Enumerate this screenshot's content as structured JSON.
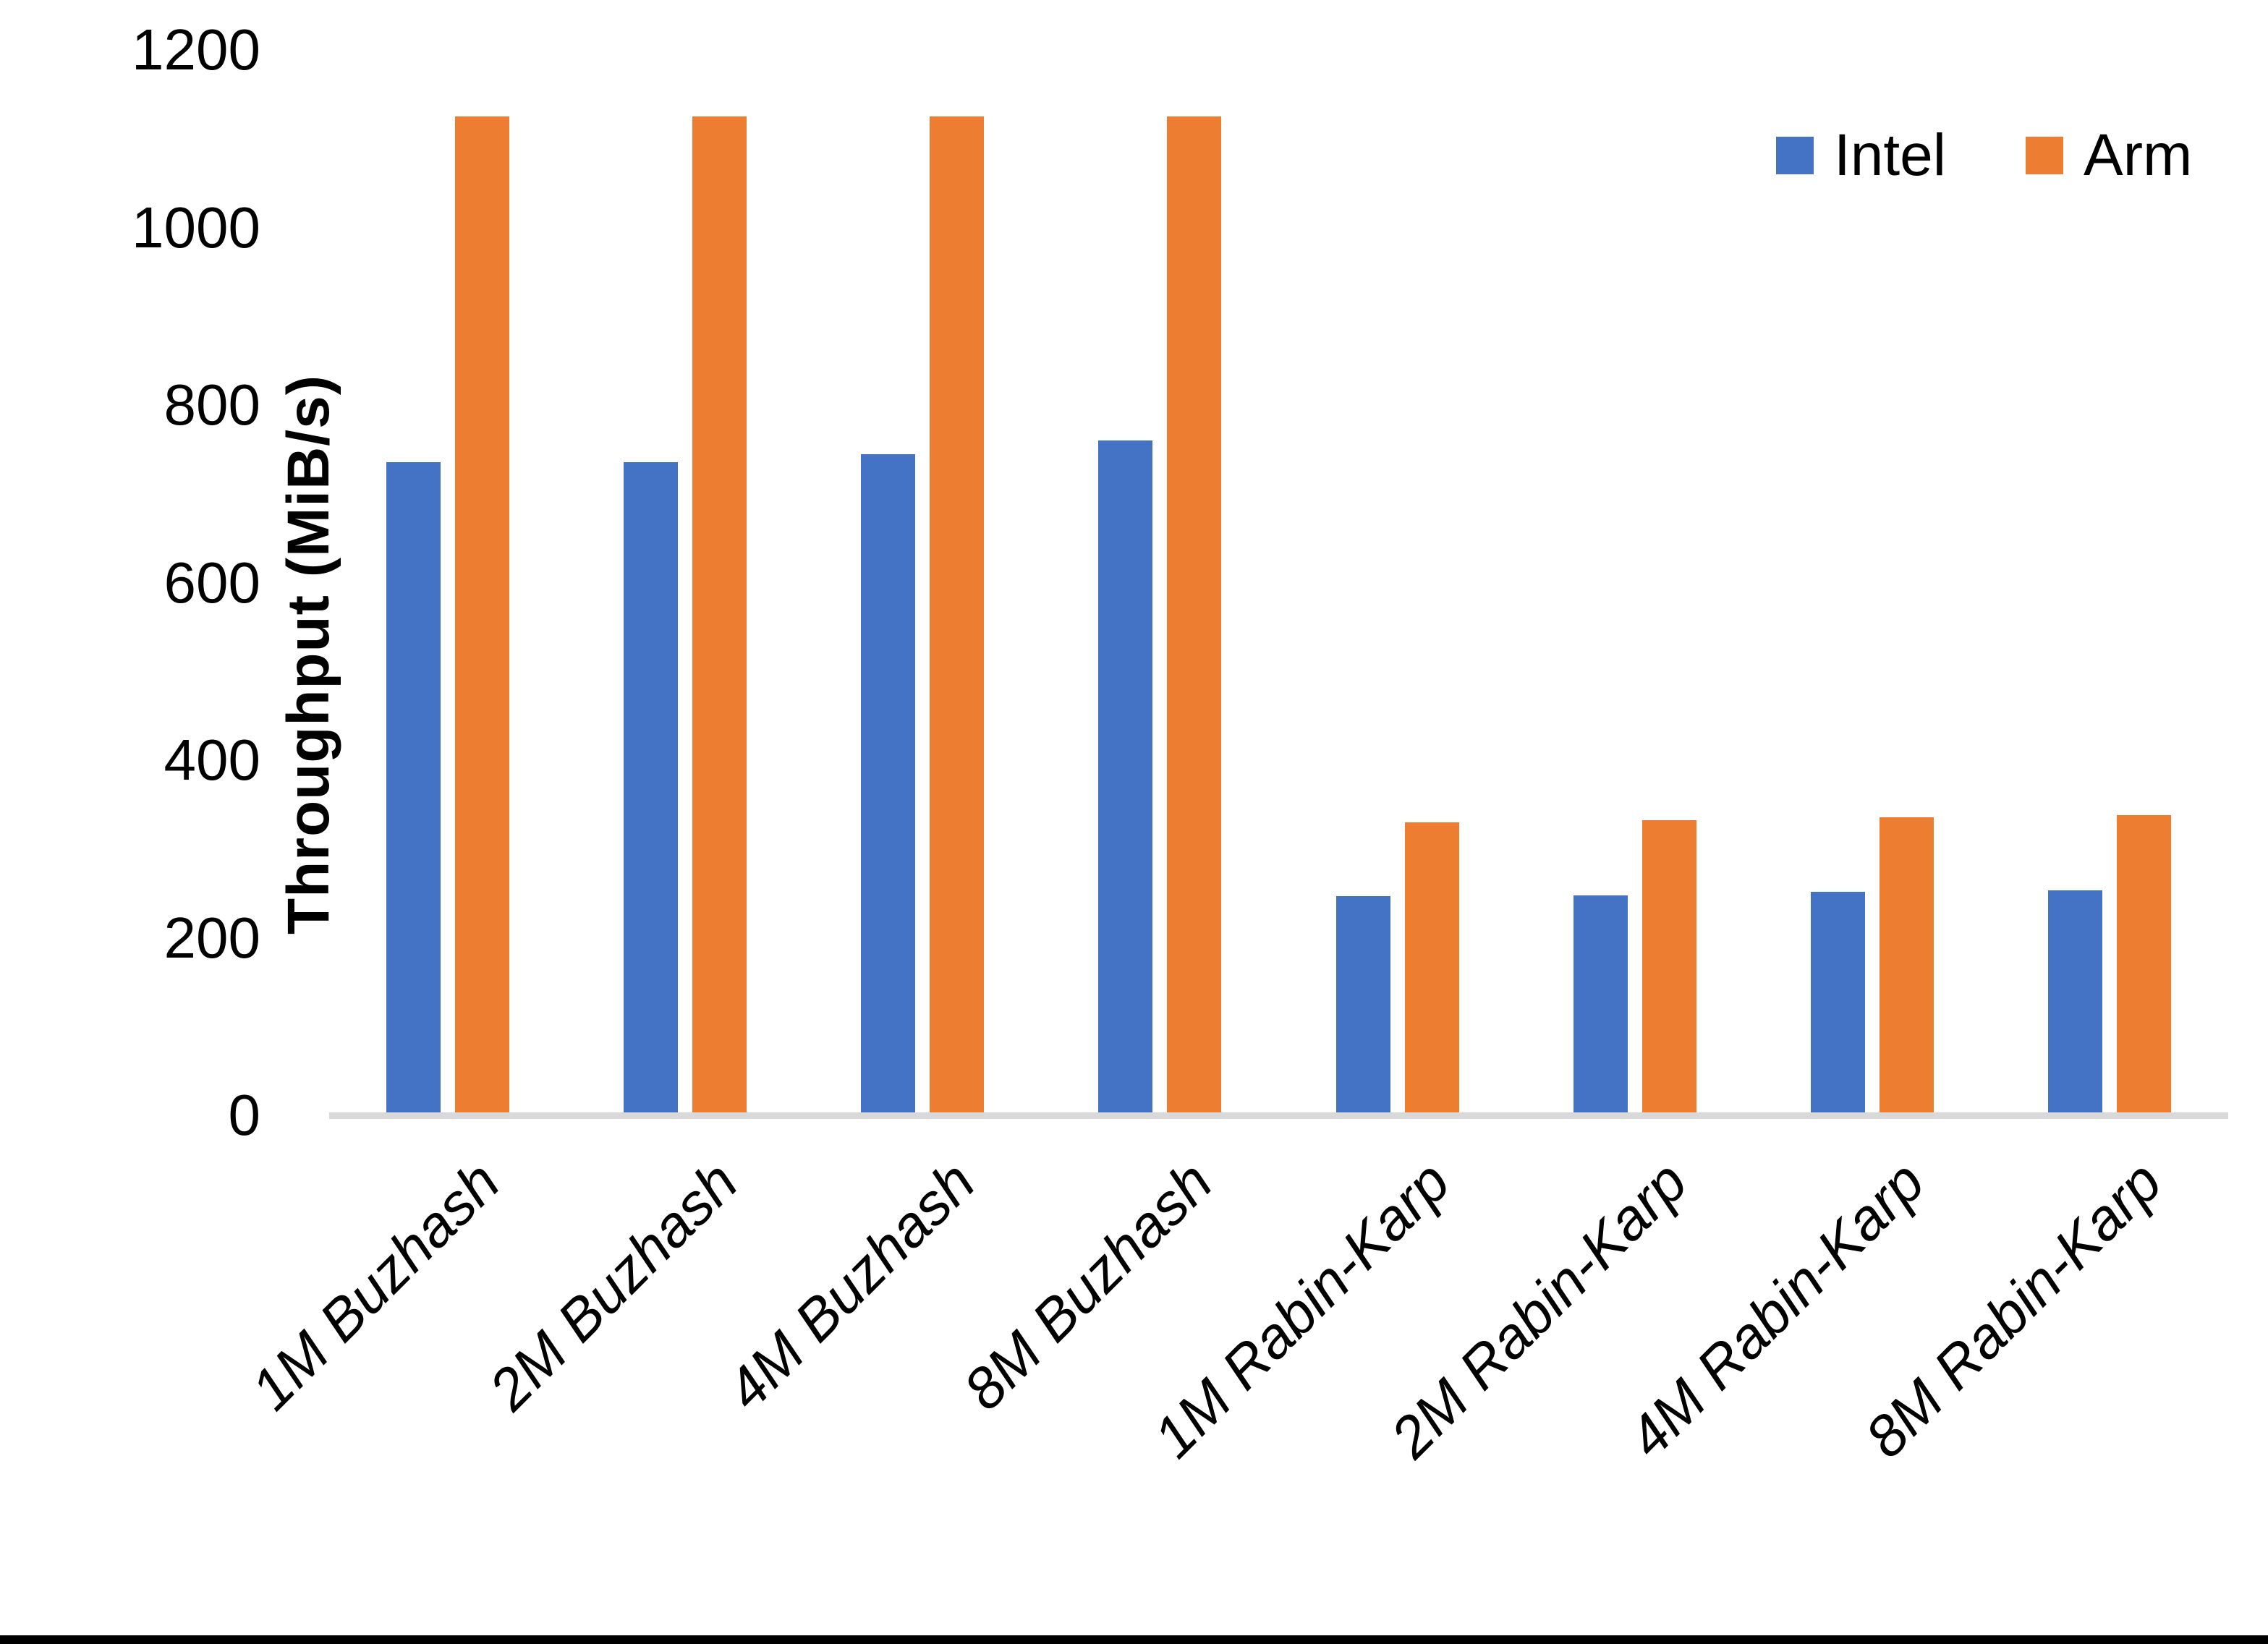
{
  "chart_data": {
    "type": "bar",
    "title": "",
    "ylabel": "Throughput (MiB/s)",
    "xlabel": "",
    "ylim": [
      0,
      1200
    ],
    "yticks": [
      0,
      200,
      400,
      600,
      800,
      1000,
      1200
    ],
    "grid": false,
    "legend_position": "top-right",
    "categories": [
      "1M Buzhash",
      "2M Buzhash",
      "4M Buzhash",
      "8M Buzhash",
      "1M Rabin-Karp",
      "2M Rabin-Karp",
      "4M Rabin-Karp",
      "8M Rabin-Karp"
    ],
    "series": [
      {
        "name": "Intel",
        "color": "#4472C4",
        "values": [
          736,
          736,
          745,
          760,
          247,
          248,
          252,
          253
        ]
      },
      {
        "name": "Arm",
        "color": "#ED7D31",
        "values": [
          1125,
          1125,
          1125,
          1125,
          330,
          332,
          336,
          338
        ]
      }
    ],
    "axis_line_color": "#d9d9d9",
    "bottom_border_color": "#000000"
  }
}
